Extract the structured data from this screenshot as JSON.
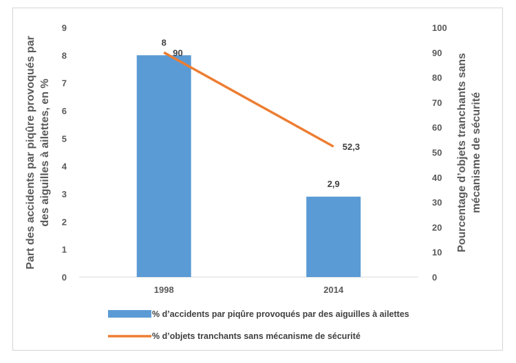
{
  "chart_data": {
    "type": "bar+line",
    "categories": [
      "1998",
      "2014"
    ],
    "series": [
      {
        "name": "% d’accidents par piqûre provoqués par des aiguilles à ailettes",
        "type": "bar",
        "axis": "left",
        "values": [
          8,
          2.9
        ],
        "labels": [
          "8",
          "2,9"
        ],
        "color": "#5b9bd5"
      },
      {
        "name": "% d’objets tranchants sans mécanisme de sécurité",
        "type": "line",
        "axis": "right",
        "values": [
          90,
          52.3
        ],
        "labels": [
          "90",
          "52,3"
        ],
        "color": "#ed7d31"
      }
    ],
    "ylabel_left_lines": [
      "Part des accidents par piqûre provoqués par",
      "des aiguilles à ailettes, en %"
    ],
    "ylabel_right_lines": [
      "Pourcentage d’objets tranchants sans",
      "mécanisme de sécurité"
    ],
    "ylim_left": [
      0,
      9
    ],
    "ylim_right": [
      0,
      100
    ],
    "yticks_left": [
      "0",
      "1",
      "2",
      "3",
      "4",
      "5",
      "6",
      "7",
      "8",
      "9"
    ],
    "yticks_right": [
      "0",
      "10",
      "20",
      "30",
      "40",
      "50",
      "60",
      "70",
      "80",
      "90",
      "100"
    ],
    "grid": false,
    "legend_position": "bottom"
  }
}
